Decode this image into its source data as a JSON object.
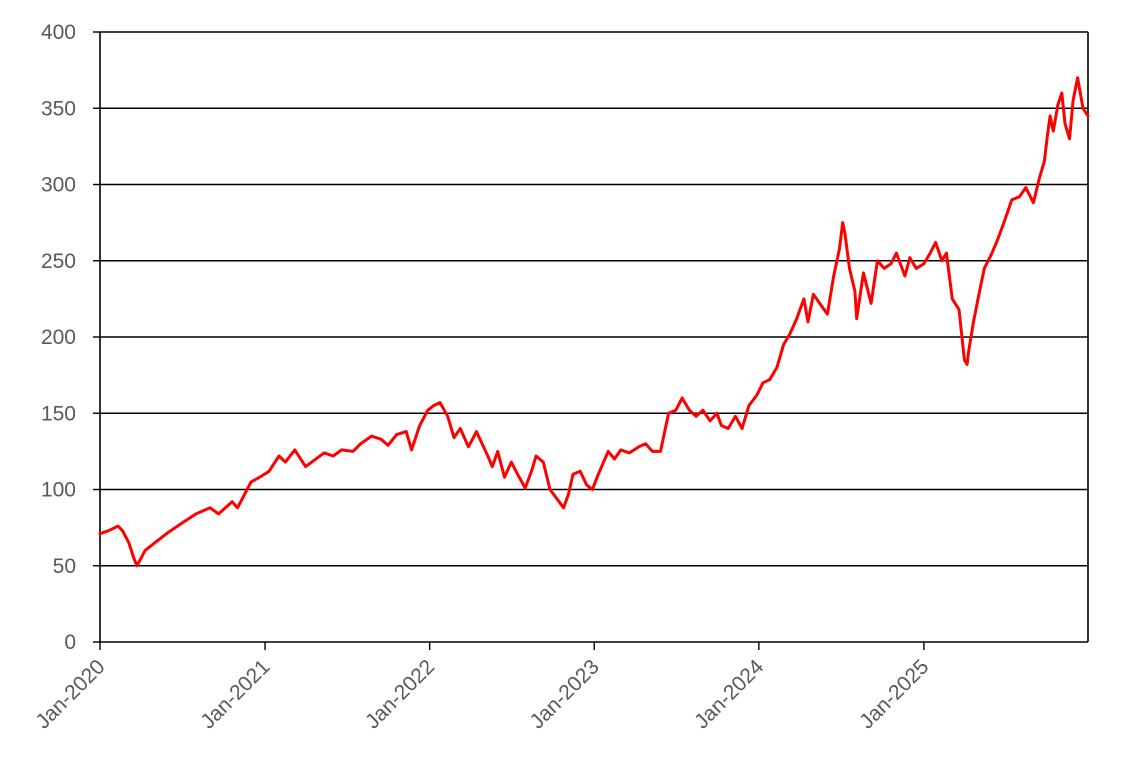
{
  "chart_data": {
    "type": "line",
    "title": "",
    "xlabel": "",
    "ylabel": "",
    "ylim": [
      0,
      400
    ],
    "xlim": [
      "2020-01-01",
      "2025-12-31"
    ],
    "yticks": [
      0,
      50,
      100,
      150,
      200,
      250,
      300,
      350,
      400
    ],
    "ytick_labels": [
      "0",
      "50",
      "100",
      "150",
      "200",
      "250",
      "300",
      "350",
      "400"
    ],
    "xticks": [
      "2020-01-01",
      "2021-01-01",
      "2022-01-01",
      "2023-01-01",
      "2024-01-01",
      "2025-01-01"
    ],
    "xtick_labels": [
      "Jan-2020",
      "Jan-2021",
      "Jan-2022",
      "Jan-2023",
      "Jan-2024",
      "Jan-2025"
    ],
    "grid": "horizontal",
    "legend": "none",
    "series": [
      {
        "color": "#ff0000",
        "x": [
          "2020-01-01",
          "2020-01-20",
          "2020-02-10",
          "2020-02-20",
          "2020-03-05",
          "2020-03-16",
          "2020-03-23",
          "2020-04-10",
          "2020-05-01",
          "2020-06-01",
          "2020-07-01",
          "2020-08-01",
          "2020-09-01",
          "2020-09-20",
          "2020-10-20",
          "2020-11-01",
          "2020-12-01",
          "2020-12-20",
          "2021-01-10",
          "2021-02-01",
          "2021-02-15",
          "2021-03-08",
          "2021-04-01",
          "2021-05-12",
          "2021-06-01",
          "2021-06-20",
          "2021-07-15",
          "2021-08-01",
          "2021-08-25",
          "2021-09-15",
          "2021-10-01",
          "2021-10-20",
          "2021-11-10",
          "2021-11-22",
          "2021-12-10",
          "2021-12-28",
          "2022-01-10",
          "2022-01-24",
          "2022-02-10",
          "2022-02-24",
          "2022-03-10",
          "2022-03-28",
          "2022-04-15",
          "2022-05-10",
          "2022-05-20",
          "2022-06-01",
          "2022-06-16",
          "2022-07-01",
          "2022-07-15",
          "2022-08-01",
          "2022-08-15",
          "2022-08-25",
          "2022-09-10",
          "2022-09-25",
          "2022-10-15",
          "2022-10-25",
          "2022-11-05",
          "2022-11-15",
          "2022-12-01",
          "2022-12-15",
          "2022-12-28",
          "2023-01-10",
          "2023-02-01",
          "2023-02-15",
          "2023-03-01",
          "2023-03-20",
          "2023-04-10",
          "2023-04-25",
          "2023-05-10",
          "2023-05-28",
          "2023-06-15",
          "2023-07-01",
          "2023-07-15",
          "2023-07-31",
          "2023-08-15",
          "2023-08-30",
          "2023-09-15",
          "2023-09-30",
          "2023-10-10",
          "2023-10-25",
          "2023-11-10",
          "2023-11-25",
          "2023-12-10",
          "2023-12-28",
          "2024-01-10",
          "2024-01-25",
          "2024-02-10",
          "2024-02-25",
          "2024-03-10",
          "2024-03-25",
          "2024-04-10",
          "2024-04-19",
          "2024-05-01",
          "2024-05-15",
          "2024-06-01",
          "2024-06-15",
          "2024-06-28",
          "2024-07-05",
          "2024-07-10",
          "2024-07-20",
          "2024-08-01",
          "2024-08-05",
          "2024-08-20",
          "2024-09-06",
          "2024-09-20",
          "2024-10-05",
          "2024-10-20",
          "2024-11-01",
          "2024-11-20",
          "2024-12-01",
          "2024-12-15",
          "2025-01-01",
          "2025-01-15",
          "2025-01-27",
          "2025-02-10",
          "2025-02-20",
          "2025-03-05",
          "2025-03-20",
          "2025-04-01",
          "2025-04-07",
          "2025-04-10",
          "2025-04-21",
          "2025-05-01",
          "2025-05-15",
          "2025-06-01",
          "2025-06-15",
          "2025-07-01",
          "2025-07-15",
          "2025-08-01",
          "2025-08-15",
          "2025-09-01",
          "2025-09-15",
          "2025-09-25",
          "2025-10-01",
          "2025-10-08",
          "2025-10-15",
          "2025-10-25",
          "2025-11-03",
          "2025-11-10",
          "2025-11-20",
          "2025-11-28",
          "2025-12-08",
          "2025-12-20",
          "2025-12-31"
        ],
        "y": [
          71,
          73,
          76,
          73,
          65,
          55,
          50,
          60,
          65,
          72,
          78,
          84,
          88,
          84,
          92,
          88,
          105,
          108,
          112,
          122,
          118,
          126,
          115,
          124,
          122,
          126,
          125,
          130,
          135,
          133,
          129,
          136,
          138,
          126,
          142,
          152,
          155,
          157,
          148,
          134,
          140,
          128,
          138,
          122,
          115,
          125,
          108,
          118,
          110,
          101,
          112,
          122,
          118,
          100,
          92,
          88,
          97,
          110,
          112,
          103,
          100,
          110,
          125,
          120,
          126,
          124,
          128,
          130,
          125,
          125,
          150,
          152,
          160,
          152,
          148,
          152,
          145,
          150,
          142,
          140,
          148,
          140,
          155,
          162,
          170,
          172,
          180,
          195,
          202,
          212,
          225,
          210,
          228,
          222,
          215,
          240,
          258,
          275,
          268,
          245,
          230,
          212,
          242,
          222,
          250,
          245,
          248,
          255,
          240,
          252,
          245,
          248,
          255,
          262,
          250,
          255,
          225,
          218,
          185,
          182,
          190,
          210,
          225,
          245,
          255,
          265,
          278,
          290,
          292,
          298,
          288,
          305,
          315,
          330,
          345,
          335,
          352,
          360,
          340,
          330,
          355,
          370,
          350,
          345
        ]
      }
    ]
  }
}
